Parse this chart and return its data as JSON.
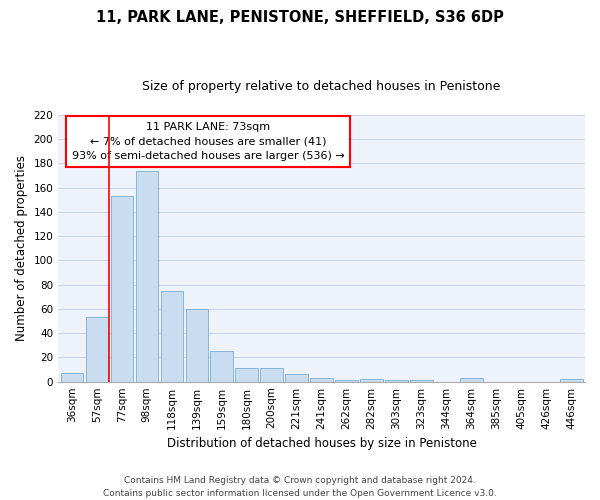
{
  "title": "11, PARK LANE, PENISTONE, SHEFFIELD, S36 6DP",
  "subtitle": "Size of property relative to detached houses in Penistone",
  "xlabel": "Distribution of detached houses by size in Penistone",
  "ylabel": "Number of detached properties",
  "bar_labels": [
    "36sqm",
    "57sqm",
    "77sqm",
    "98sqm",
    "118sqm",
    "139sqm",
    "159sqm",
    "180sqm",
    "200sqm",
    "221sqm",
    "241sqm",
    "262sqm",
    "282sqm",
    "303sqm",
    "323sqm",
    "344sqm",
    "364sqm",
    "385sqm",
    "405sqm",
    "426sqm",
    "446sqm"
  ],
  "bar_values": [
    7,
    53,
    153,
    174,
    75,
    60,
    25,
    11,
    11,
    6,
    3,
    1,
    2,
    1,
    1,
    0,
    3,
    0,
    0,
    0,
    2
  ],
  "bar_color": "#c9dcf0",
  "bar_edge_color": "#7aaed6",
  "ylim": [
    0,
    220
  ],
  "yticks": [
    0,
    20,
    40,
    60,
    80,
    100,
    120,
    140,
    160,
    180,
    200,
    220
  ],
  "property_label": "11 PARK LANE: 73sqm",
  "annotation_line1": "← 7% of detached houses are smaller (41)",
  "annotation_line2": "93% of semi-detached houses are larger (536) →",
  "footer_line1": "Contains HM Land Registry data © Crown copyright and database right 2024.",
  "footer_line2": "Contains public sector information licensed under the Open Government Licence v3.0.",
  "background_color": "#eef2fa",
  "grid_color": "#c8d4e8",
  "title_fontsize": 10.5,
  "subtitle_fontsize": 9,
  "axis_label_fontsize": 8.5,
  "tick_fontsize": 7.5,
  "footer_fontsize": 6.5
}
